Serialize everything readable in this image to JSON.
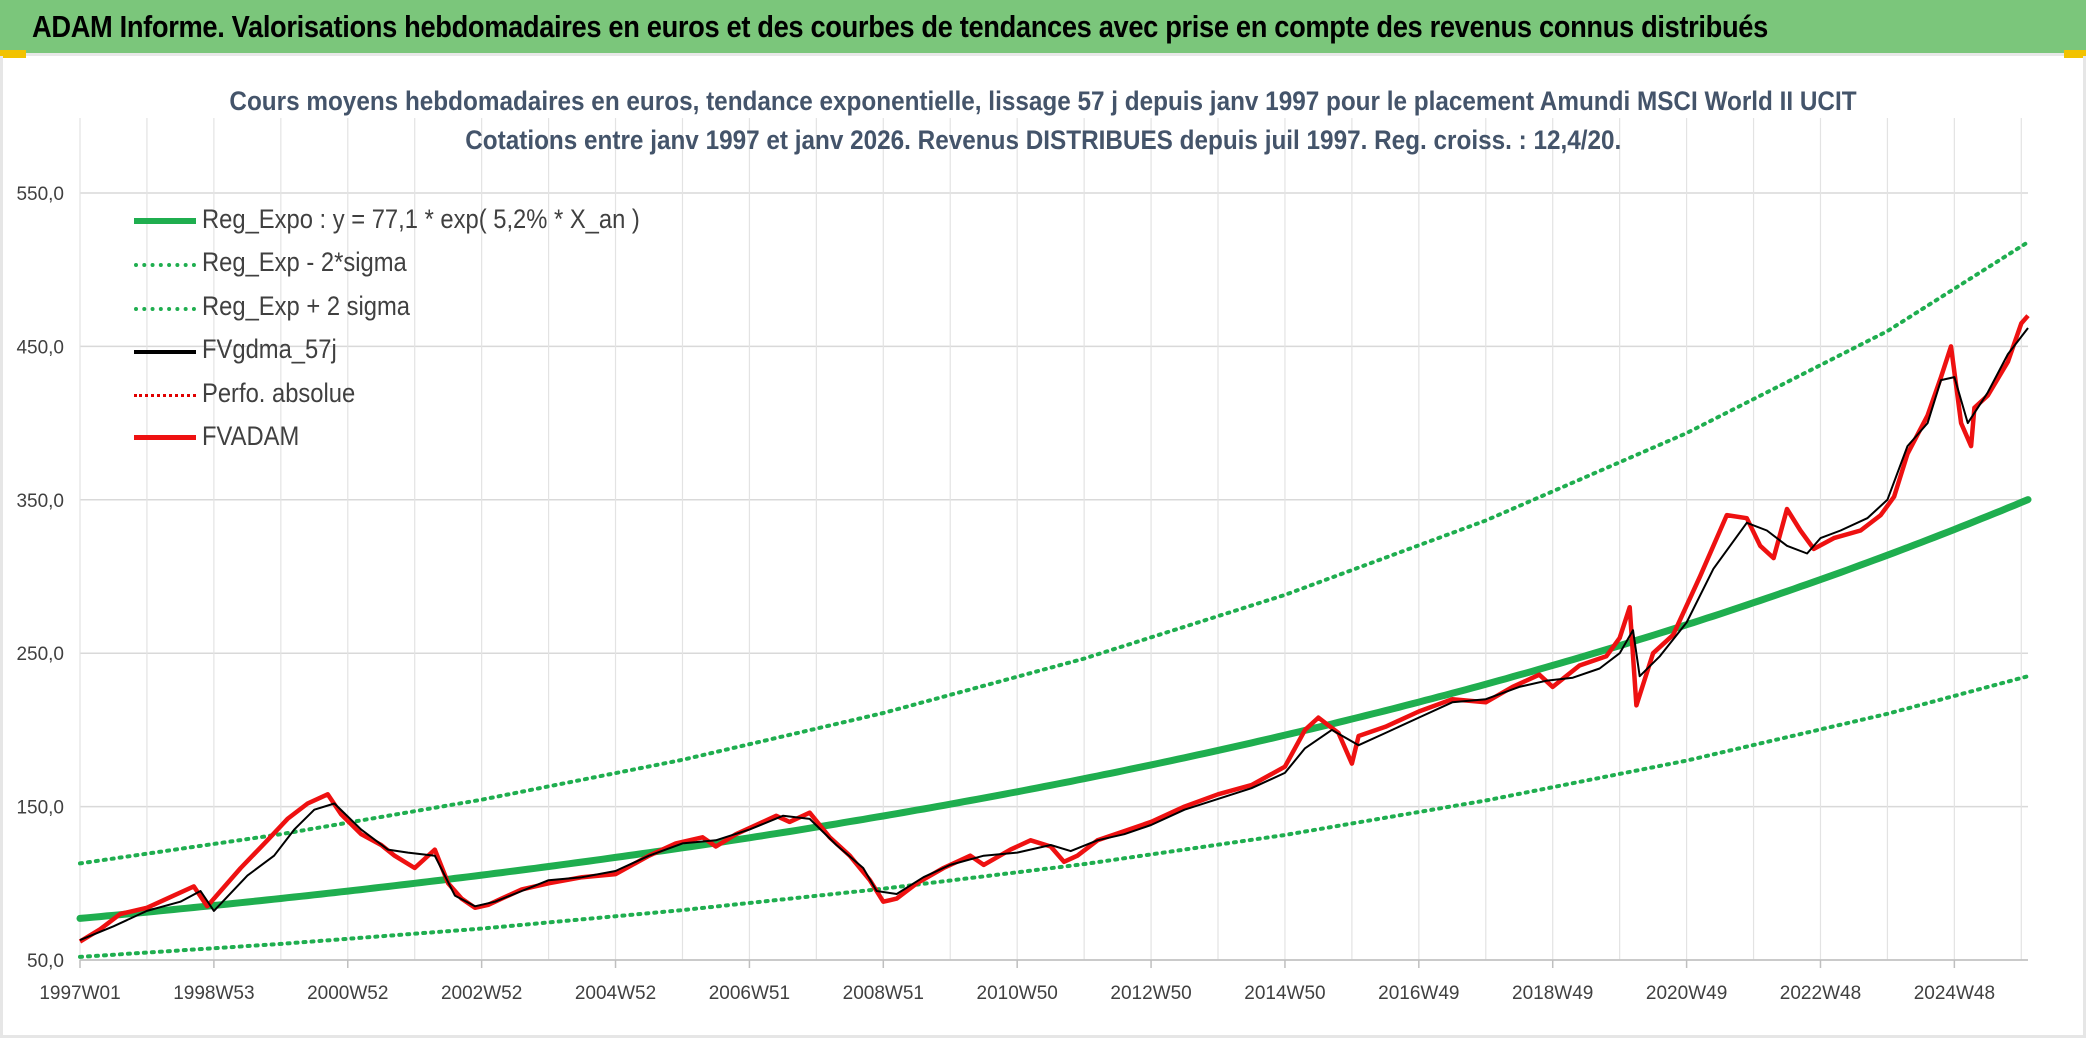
{
  "header": {
    "title": "ADAM Informe. Valorisations hebdomadaires en euros et des courbes de tendances avec prise en compte des revenus connus distribués"
  },
  "chart_data": {
    "type": "line",
    "title": "Cours moyens hebdomadaires en euros, tendance exponentielle, lissage 57 j depuis janv 1997 pour le placement Amundi MSCI World II UCIT",
    "subtitle": "Cotations entre janv 1997 et janv 2026. Revenus DISTRIBUES depuis juil 1997. Reg. croiss. : 12,4/20.",
    "x_tick_labels": [
      "1997W01",
      "1998W53",
      "2000W52",
      "2002W52",
      "2004W52",
      "2006W51",
      "2008W51",
      "2010W50",
      "2012W50",
      "2014W50",
      "2016W49",
      "2018W49",
      "2020W49",
      "2022W48",
      "2024W48"
    ],
    "y_tick_labels": [
      "50,0",
      "150,0",
      "250,0",
      "350,0",
      "450,0",
      "550,0"
    ],
    "ylim": [
      50,
      550
    ],
    "xlim_years": [
      1997.0,
      2026.1
    ],
    "grid": true,
    "legend_placement": "top-left",
    "colors": {
      "regression": "#1fae4f",
      "smoothed": "#000000",
      "perfo": "#e00000",
      "fvadam": "#ee1111"
    },
    "series": [
      {
        "name": "Reg_Expo : y = 77,1 * exp( 5,2% *  X_an )",
        "style": "solid-thick-green",
        "formula": {
          "a": 77.1,
          "rate": 0.052,
          "x0": 1997.0
        },
        "x_years": [
          1997,
          2000,
          2003,
          2006,
          2009,
          2012,
          2015,
          2018,
          2021,
          2024,
          2026.1
        ],
        "values": [
          77.1,
          90.1,
          105.4,
          123.3,
          144.1,
          168.5,
          197.1,
          230.4,
          269.5,
          315.1,
          351.0
        ]
      },
      {
        "name": "Reg_Exp - 2*sigma",
        "style": "dotted-green",
        "x_years": [
          1997,
          2000,
          2003,
          2006,
          2009,
          2012,
          2015,
          2018,
          2021,
          2024,
          2026.1
        ],
        "values": [
          52,
          60.5,
          70.5,
          82.5,
          96.5,
          112.5,
          131.5,
          154,
          180,
          210.5,
          235
        ]
      },
      {
        "name": "Reg_Exp + 2 sigma",
        "style": "dotted-green",
        "x_years": [
          1997,
          2000,
          2003,
          2006,
          2009,
          2012,
          2015,
          2018,
          2021,
          2024,
          2026.1
        ],
        "values": [
          113,
          132,
          154.5,
          180.5,
          211,
          246.5,
          288,
          336.5,
          393.5,
          460,
          518
        ]
      },
      {
        "name": "FVgdma_57j",
        "style": "solid-black",
        "x_years": [
          1997.0,
          1997.5,
          1998.0,
          1998.5,
          1998.8,
          1999.0,
          1999.5,
          1999.9,
          2000.2,
          2000.5,
          2000.8,
          2001.2,
          2001.6,
          2001.9,
          2002.3,
          2002.6,
          2002.9,
          2003.2,
          2003.6,
          2004.0,
          2004.5,
          2005.0,
          2005.5,
          2006.0,
          2006.5,
          2007.0,
          2007.5,
          2007.9,
          2008.3,
          2008.7,
          2008.9,
          2009.2,
          2009.6,
          2010.0,
          2010.5,
          2011.0,
          2011.5,
          2011.8,
          2012.2,
          2012.6,
          2013.0,
          2013.5,
          2014.0,
          2014.5,
          2015.0,
          2015.3,
          2015.7,
          2016.1,
          2016.5,
          2017.0,
          2017.5,
          2018.0,
          2018.5,
          2018.9,
          2019.3,
          2019.7,
          2020.0,
          2020.2,
          2020.3,
          2020.6,
          2021.0,
          2021.4,
          2021.9,
          2022.2,
          2022.5,
          2022.8,
          2023.0,
          2023.3,
          2023.7,
          2024.0,
          2024.3,
          2024.6,
          2024.8,
          2025.0,
          2025.2,
          2025.5,
          2025.8,
          2026.1
        ],
        "values": [
          63,
          72,
          82,
          88,
          95,
          82,
          105,
          118,
          135,
          148,
          152,
          135,
          122,
          120,
          118,
          92,
          85,
          88,
          95,
          102,
          104,
          108,
          118,
          126,
          128,
          135,
          144,
          142,
          125,
          110,
          95,
          93,
          104,
          112,
          118,
          120,
          125,
          121,
          128,
          132,
          138,
          148,
          155,
          162,
          172,
          188,
          200,
          190,
          198,
          208,
          218,
          220,
          228,
          232,
          234,
          240,
          250,
          265,
          235,
          248,
          270,
          305,
          335,
          330,
          320,
          315,
          325,
          330,
          338,
          350,
          385,
          400,
          428,
          430,
          400,
          420,
          445,
          462
        ]
      },
      {
        "name": "Perfo. absolue",
        "style": "dotted-red",
        "values": []
      },
      {
        "name": "FVADAM",
        "style": "solid-red",
        "x_years": [
          1997.0,
          1997.3,
          1997.6,
          1998.0,
          1998.4,
          1998.7,
          1998.9,
          1999.1,
          1999.4,
          1999.8,
          2000.1,
          2000.4,
          2000.7,
          2000.9,
          2001.2,
          2001.5,
          2001.7,
          2002.0,
          2002.3,
          2002.5,
          2002.7,
          2002.9,
          2003.1,
          2003.3,
          2003.6,
          2004.0,
          2004.5,
          2005.0,
          2005.5,
          2005.9,
          2006.3,
          2006.5,
          2006.8,
          2007.1,
          2007.4,
          2007.6,
          2007.9,
          2008.2,
          2008.5,
          2008.8,
          2009.0,
          2009.2,
          2009.5,
          2009.9,
          2010.3,
          2010.5,
          2010.9,
          2011.2,
          2011.5,
          2011.7,
          2011.9,
          2012.2,
          2012.6,
          2013.0,
          2013.5,
          2014.0,
          2014.5,
          2015.0,
          2015.3,
          2015.5,
          2015.8,
          2016.0,
          2016.1,
          2016.5,
          2017.0,
          2017.5,
          2018.0,
          2018.4,
          2018.8,
          2019.0,
          2019.4,
          2019.8,
          2020.0,
          2020.15,
          2020.25,
          2020.5,
          2020.8,
          2021.2,
          2021.6,
          2021.9,
          2022.1,
          2022.3,
          2022.5,
          2022.7,
          2022.9,
          2023.2,
          2023.6,
          2023.9,
          2024.1,
          2024.3,
          2024.6,
          2024.8,
          2024.95,
          2025.1,
          2025.25,
          2025.3,
          2025.5,
          2025.8,
          2026.0,
          2026.1
        ],
        "values": [
          62,
          70,
          80,
          84,
          92,
          98,
          85,
          95,
          110,
          128,
          142,
          152,
          158,
          145,
          132,
          125,
          118,
          110,
          122,
          100,
          90,
          84,
          86,
          90,
          96,
          100,
          104,
          106,
          118,
          126,
          130,
          124,
          132,
          138,
          144,
          140,
          146,
          130,
          118,
          102,
          88,
          90,
          100,
          110,
          118,
          112,
          122,
          128,
          124,
          114,
          118,
          128,
          134,
          140,
          150,
          158,
          164,
          176,
          200,
          208,
          198,
          178,
          196,
          202,
          212,
          220,
          218,
          228,
          236,
          228,
          242,
          248,
          260,
          280,
          216,
          250,
          262,
          300,
          340,
          338,
          320,
          312,
          344,
          330,
          318,
          325,
          330,
          340,
          352,
          380,
          405,
          430,
          450,
          400,
          385,
          410,
          418,
          440,
          465,
          470
        ]
      }
    ]
  }
}
